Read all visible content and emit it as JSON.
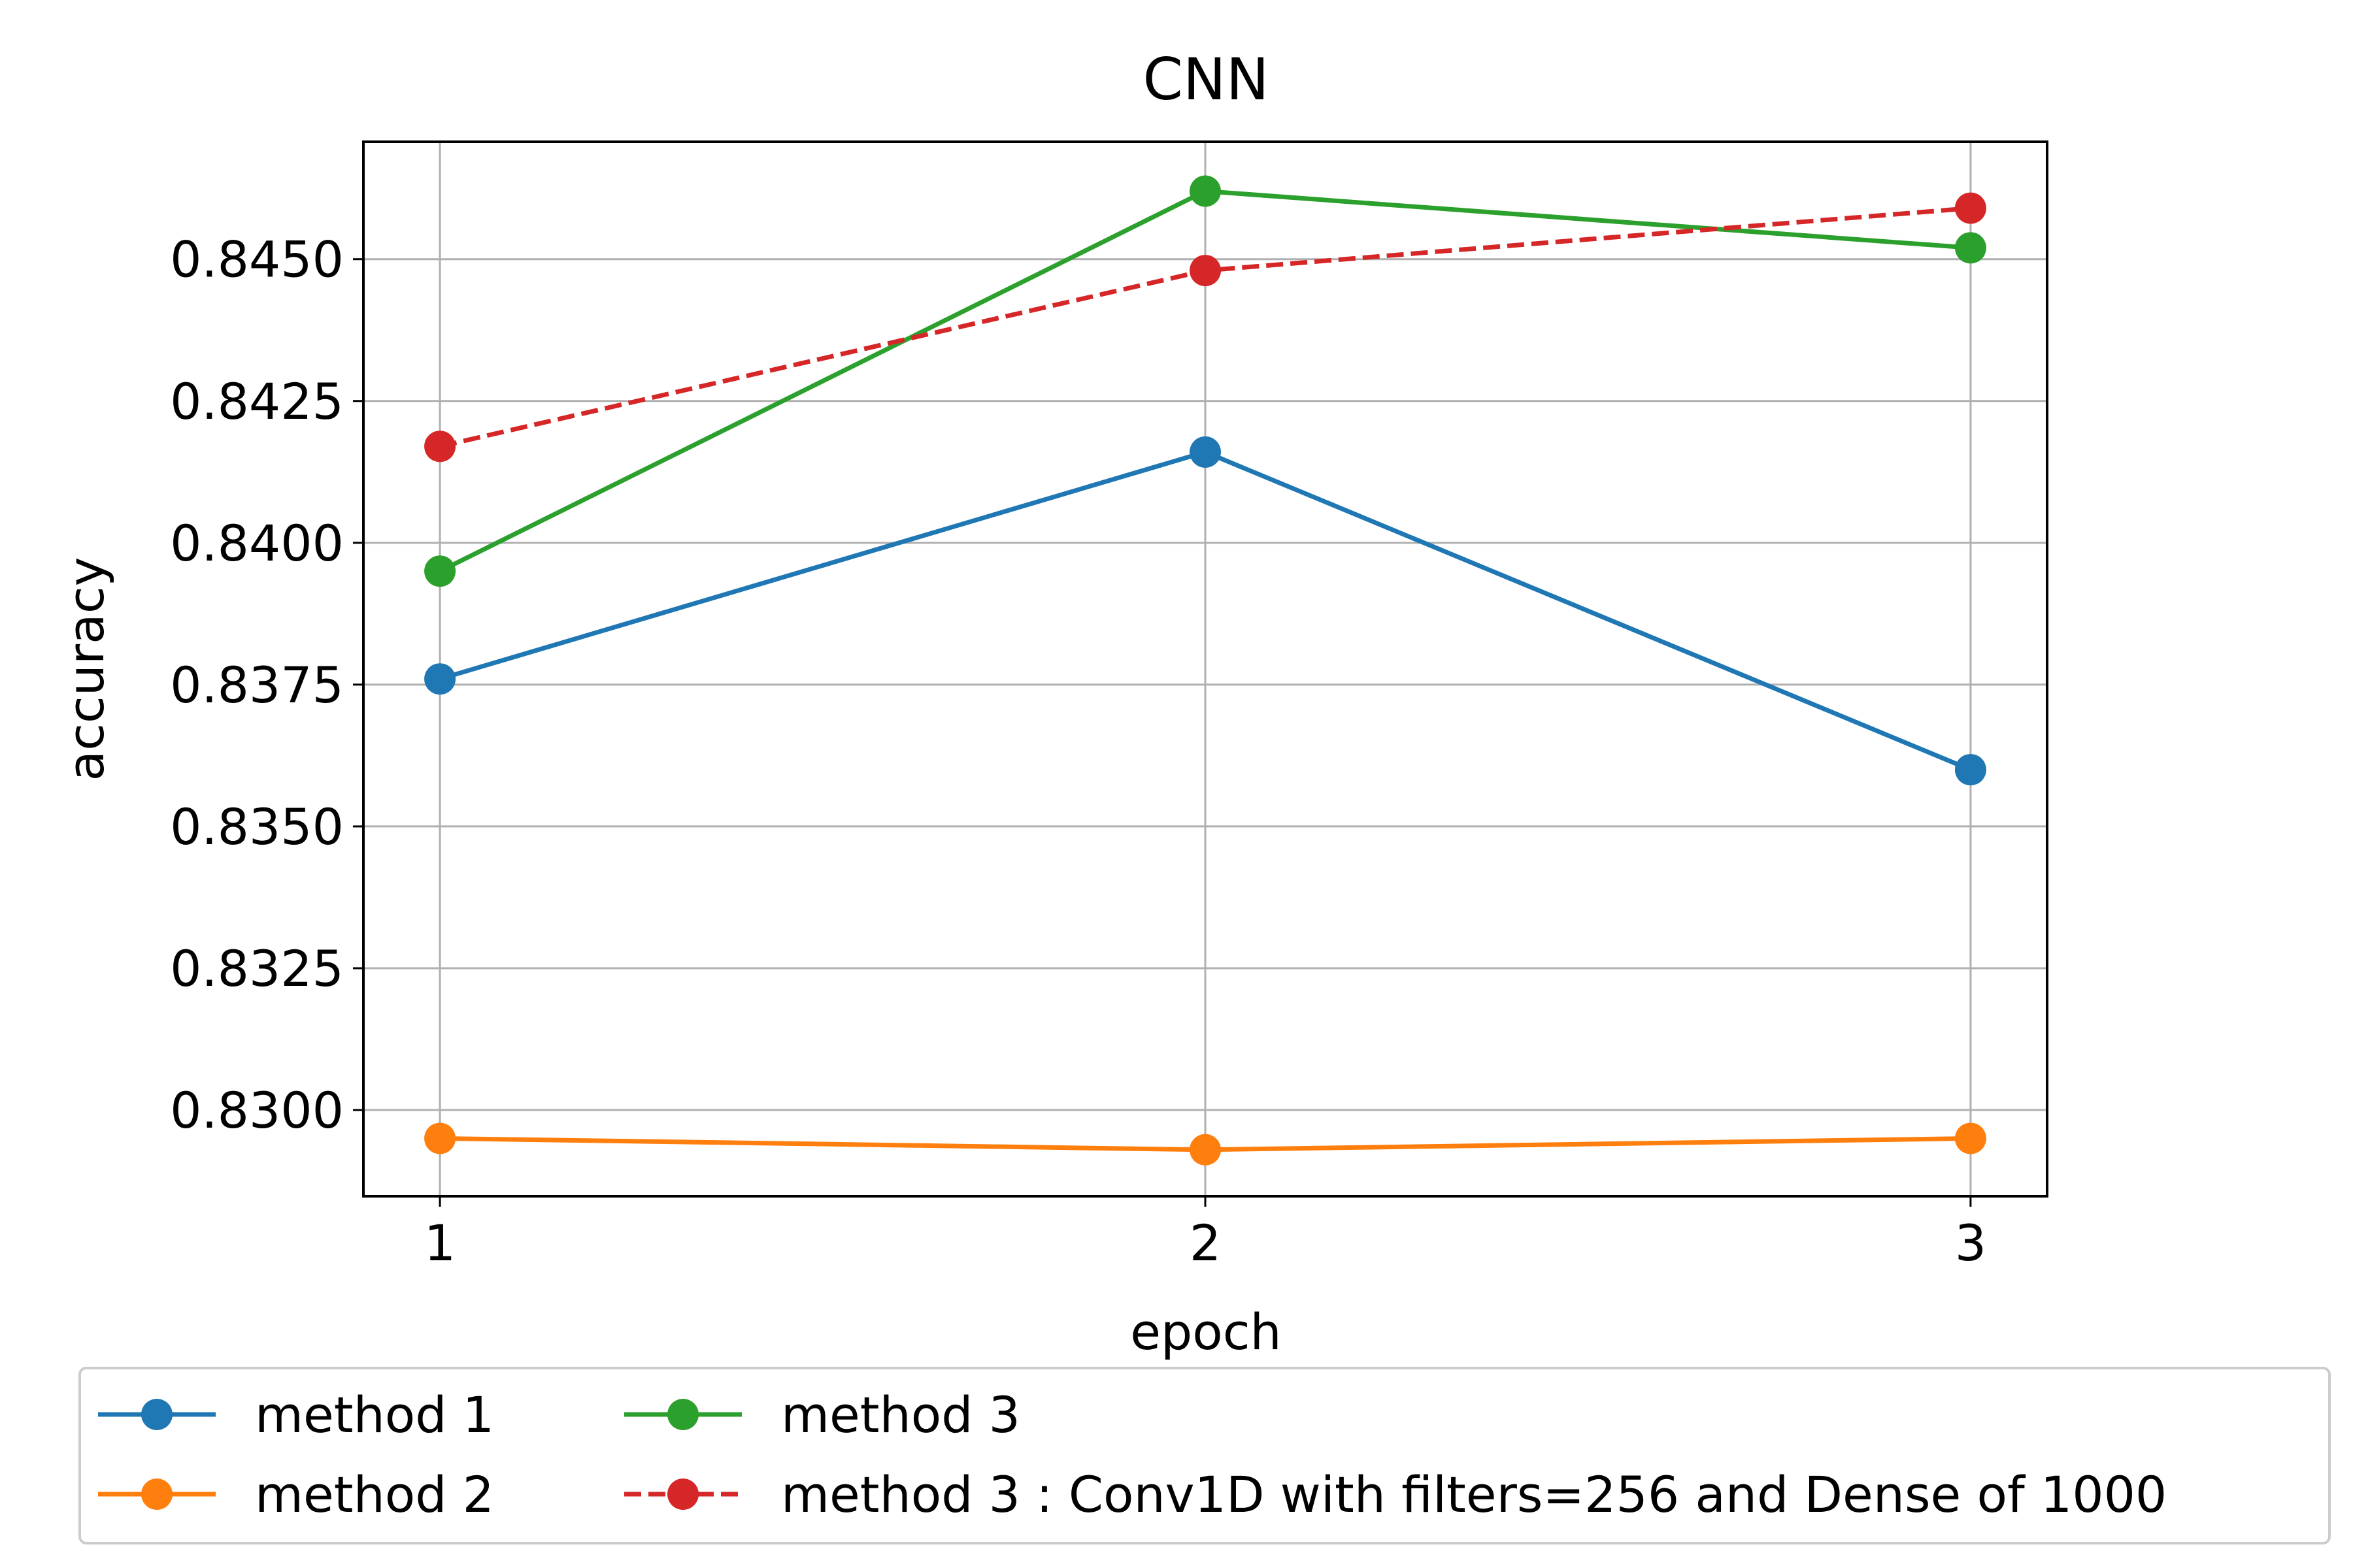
{
  "chart_data": {
    "type": "line",
    "title": "CNN",
    "xlabel": "epoch",
    "ylabel": "accuracy",
    "x": [
      1,
      2,
      3
    ],
    "x_tick_labels": [
      "1",
      "2",
      "3"
    ],
    "xlim": [
      0.9,
      3.1
    ],
    "ylim": [
      0.82848,
      0.84707
    ],
    "y_ticks": [
      0.83,
      0.8325,
      0.835,
      0.8375,
      0.84,
      0.8425,
      0.845
    ],
    "y_tick_labels": [
      "0.8300",
      "0.8325",
      "0.8350",
      "0.8375",
      "0.8400",
      "0.8425",
      "0.8450"
    ],
    "grid": true,
    "legend_position": "bottom, below axes",
    "series": [
      {
        "name": "method 1",
        "values": [
          0.8376,
          0.8416,
          0.836
        ],
        "color": "#1f77b4",
        "linestyle": "solid",
        "marker": "circle"
      },
      {
        "name": "method 2",
        "values": [
          0.8295,
          0.8293,
          0.8295
        ],
        "color": "#ff7f0e",
        "linestyle": "solid",
        "marker": "circle"
      },
      {
        "name": "method 3",
        "values": [
          0.8395,
          0.8462,
          0.8452
        ],
        "color": "#2ca02c",
        "linestyle": "solid",
        "marker": "circle"
      },
      {
        "name": "method 3 : Conv1D with filters=256 and Dense of 1000",
        "values": [
          0.8417,
          0.8448,
          0.8459
        ],
        "color": "#d62728",
        "linestyle": "dashed",
        "marker": "circle"
      }
    ]
  }
}
